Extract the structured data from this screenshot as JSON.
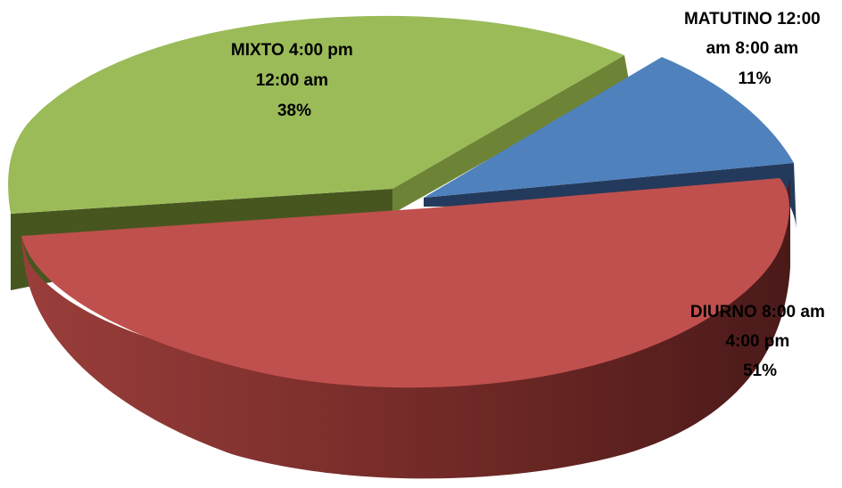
{
  "chart_data": {
    "type": "pie",
    "variant": "3d-exploded",
    "title": "",
    "slices": [
      {
        "label_lines": [
          "MATUTINO 12:00",
          "am 8:00 am"
        ],
        "percent_label": "11%",
        "value": 11,
        "color": "#4f81bd",
        "side_color": "#243a5c"
      },
      {
        "label_lines": [
          "DIURNO 8:00 am",
          "4:00 pm"
        ],
        "percent_label": "51%",
        "value": 51,
        "color": "#c0504d",
        "side_color": "#6e2624"
      },
      {
        "label_lines": [
          "MIXTO 4:00 pm",
          "12:00 am"
        ],
        "percent_label": "38%",
        "value": 38,
        "color": "#9bbb59",
        "side_color": "#4e6026"
      }
    ],
    "legend": "none"
  }
}
